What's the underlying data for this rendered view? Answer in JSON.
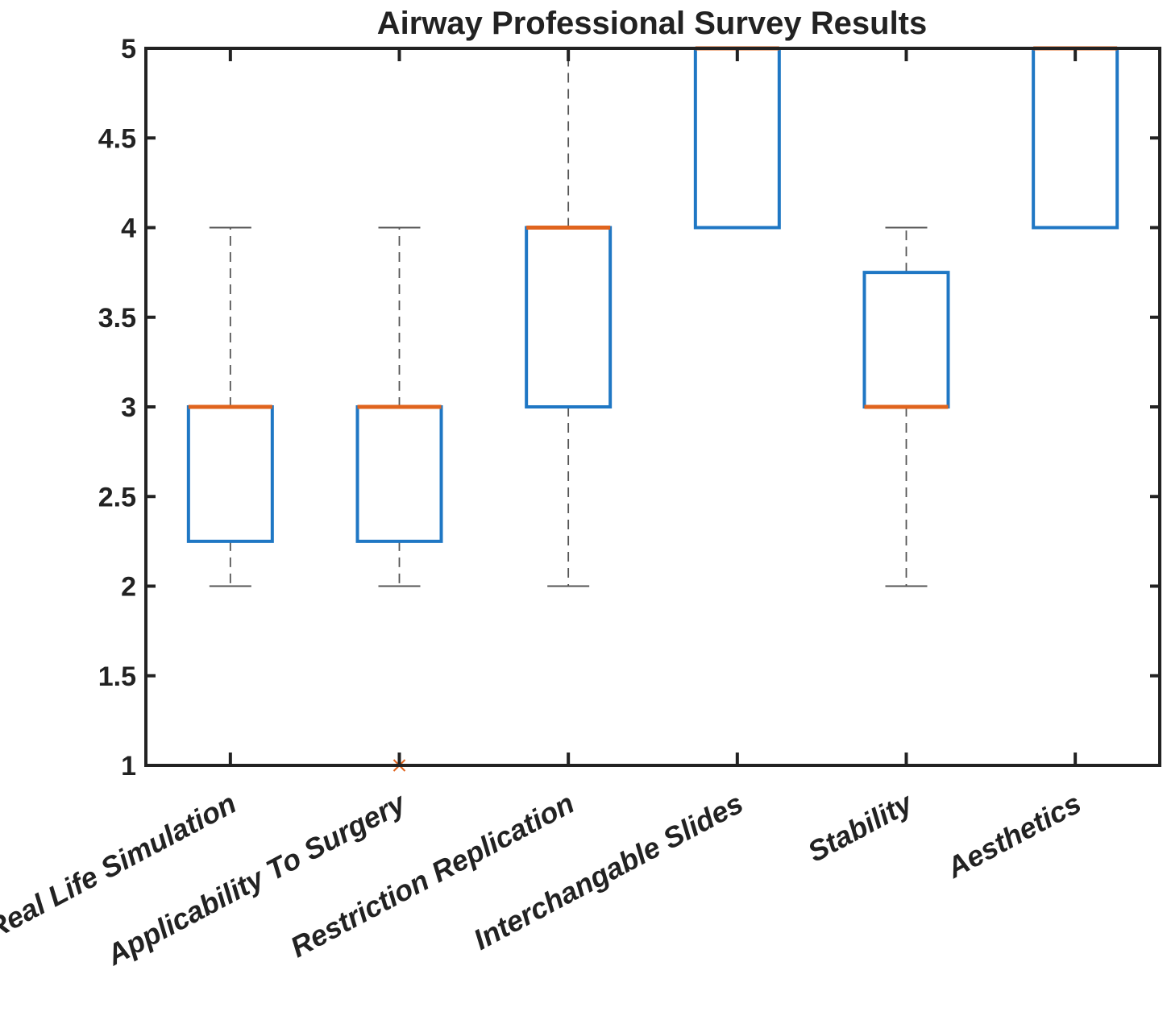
{
  "chart_data": {
    "type": "boxplot",
    "title": "Airway Professional Survey Results",
    "xlabel": "",
    "ylabel": "",
    "ylim": [
      1,
      5
    ],
    "yticks": [
      1,
      1.5,
      2,
      2.5,
      3,
      3.5,
      4,
      4.5,
      5
    ],
    "ytick_labels": [
      "1",
      "1.5",
      "2",
      "2.5",
      "3",
      "3.5",
      "4",
      "4.5",
      "5"
    ],
    "categories": [
      "Real Life Simulation",
      "Applicability To Surgery",
      "Restriction Replication",
      "Interchangable Slides",
      "Stability",
      "Aesthetics"
    ],
    "boxes": [
      {
        "category": "Real Life Simulation",
        "whisker_low": 2,
        "q1": 2.25,
        "median": 3,
        "q3": 3,
        "whisker_high": 4,
        "outliers": []
      },
      {
        "category": "Applicability To Surgery",
        "whisker_low": 2,
        "q1": 2.25,
        "median": 3,
        "q3": 3,
        "whisker_high": 4,
        "outliers": [
          1
        ]
      },
      {
        "category": "Restriction Replication",
        "whisker_low": 2,
        "q1": 3,
        "median": 4,
        "q3": 4,
        "whisker_high": 5,
        "outliers": []
      },
      {
        "category": "Interchangable Slides",
        "whisker_low": 4,
        "q1": 4,
        "median": 5,
        "q3": 5,
        "whisker_high": 5,
        "outliers": []
      },
      {
        "category": "Stability",
        "whisker_low": 2,
        "q1": 3,
        "median": 3,
        "q3": 3.75,
        "whisker_high": 4,
        "outliers": []
      },
      {
        "category": "Aesthetics",
        "whisker_low": 4,
        "q1": 4,
        "median": 5,
        "q3": 5,
        "whisker_high": 5,
        "outliers": []
      }
    ],
    "grid": false,
    "legend": "none",
    "colors": {
      "box": "#1f77c4",
      "median": "#e0641e",
      "whisker": "#555555",
      "axis": "#222222",
      "text": "#222222"
    }
  }
}
